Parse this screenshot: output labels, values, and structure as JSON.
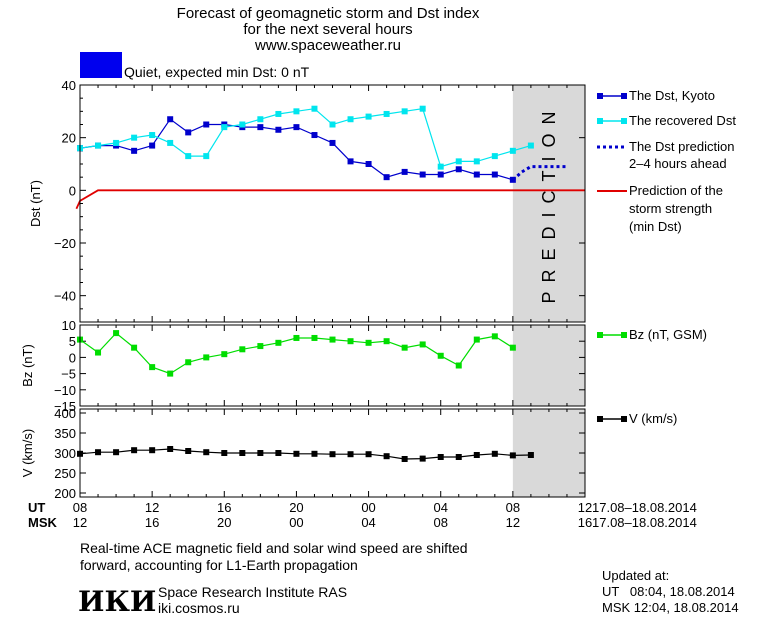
{
  "header": {
    "title_line1": "Forecast of geomagnetic storm and Dst index",
    "title_line2": "for the next several hours",
    "title_line3": "www.spaceweather.ru",
    "status_text": "Quiet, expected min Dst: 0 nT",
    "status_color": "#0000ee"
  },
  "colors": {
    "dst_kyoto": "#0000cc",
    "recovered_dst": "#00e5ee",
    "prediction_strength": "#e00000",
    "bz": "#00dd00",
    "v": "#000000",
    "prediction_band": "#d9d9d9"
  },
  "prediction_label": "PREDICTION",
  "legend": {
    "dst_kyoto": "The Dst, Kyoto",
    "recovered": "The recovered Dst",
    "dst_pred_1": "The Dst prediction",
    "dst_pred_2": "2–4 hours ahead",
    "strength_1": "Prediction of the",
    "strength_2": "storm strength",
    "strength_3": "(min Dst)",
    "bz": "Bz (nT, GSM)",
    "v": "V (km/s)"
  },
  "time_axis": {
    "ut_label": "UT",
    "msk_label": "MSK",
    "ut_ticks": [
      "08",
      "12",
      "16",
      "20",
      "00",
      "04",
      "08",
      "12"
    ],
    "msk_ticks": [
      "12",
      "16",
      "20",
      "00",
      "04",
      "08",
      "12",
      "16"
    ],
    "date_range_ut": "17.08–18.08.2014",
    "date_range_msk": "17.08–18.08.2014"
  },
  "footer": {
    "note_line1": "Real-time ACE magnetic field and solar wind speed are shifted",
    "note_line2": "forward, accounting for L1-Earth propagation",
    "logo_text": "ИКИ",
    "institute": "Space Research Institute RAS",
    "site": "iki.cosmos.ru",
    "updated_label": "Updated at:",
    "updated_ut": "UT   08:04, 18.08.2014",
    "updated_msk": "MSK 12:04, 18.08.2014"
  },
  "chart_data": [
    {
      "type": "line",
      "ylabel": "Dst (nT)",
      "xlim_hours_since_ut_08": [
        0,
        28
      ],
      "prediction_start_hours": 24,
      "ylim": [
        -50,
        40
      ],
      "yticks": [
        40,
        20,
        0,
        -20,
        -40
      ],
      "series": [
        {
          "name": "The Dst, Kyoto",
          "x": [
            0,
            1,
            2,
            3,
            4,
            5,
            6,
            7,
            8,
            9,
            10,
            11,
            12,
            13,
            14,
            15,
            16,
            17,
            18,
            19,
            20,
            21,
            22,
            23,
            24
          ],
          "y": [
            16,
            17,
            17,
            15,
            17,
            27,
            22,
            25,
            25,
            24,
            24,
            23,
            24,
            21,
            18,
            11,
            10,
            5,
            7,
            6,
            6,
            8,
            6,
            6,
            4
          ]
        },
        {
          "name": "The recovered Dst",
          "x": [
            0,
            1,
            2,
            3,
            4,
            5,
            6,
            7,
            8,
            9,
            10,
            11,
            12,
            13,
            14,
            15,
            16,
            17,
            18,
            19,
            20,
            21,
            22,
            23,
            24,
            25
          ],
          "y": [
            16,
            17,
            18,
            20,
            21,
            18,
            13,
            13,
            24,
            25,
            27,
            29,
            30,
            31,
            25,
            27,
            28,
            29,
            30,
            31,
            9,
            11,
            11,
            13,
            15,
            17
          ]
        },
        {
          "name": "The Dst prediction",
          "x": [
            24,
            24.5,
            25,
            25.5,
            26,
            26.5,
            27
          ],
          "y": [
            4,
            7,
            9,
            9,
            9,
            9,
            9
          ]
        },
        {
          "name": "Prediction of the storm strength (min Dst)",
          "x": [
            -0.2,
            0,
            1,
            28
          ],
          "y": [
            -7,
            -4,
            0,
            0
          ]
        }
      ]
    },
    {
      "type": "line",
      "ylabel": "Bz (nT)",
      "ylim": [
        -15,
        10
      ],
      "yticks": [
        10,
        5,
        0,
        -5,
        -10,
        -15
      ],
      "yticks_labels": [
        "10",
        "5",
        "0",
        "−5",
        "−10",
        "−15"
      ],
      "series": [
        {
          "name": "Bz (nT, GSM)",
          "x": [
            0,
            1,
            2,
            3,
            4,
            5,
            6,
            7,
            8,
            9,
            10,
            11,
            12,
            13,
            14,
            15,
            16,
            17,
            18,
            19,
            20,
            21,
            22,
            23,
            24,
            25
          ],
          "y": [
            5.5,
            1.5,
            7.5,
            3,
            -3,
            -5,
            -1.5,
            0,
            1,
            2.5,
            3.5,
            4.5,
            6,
            6,
            5.5,
            5,
            4.5,
            5,
            3,
            4,
            0.5,
            -2.5,
            5.5,
            6.5,
            3,
            null
          ]
        }
      ]
    },
    {
      "type": "line",
      "ylabel": "V (km/s)",
      "ylim": [
        190,
        410
      ],
      "yticks": [
        400,
        350,
        300,
        250,
        200
      ],
      "series": [
        {
          "name": "V (km/s)",
          "x": [
            0,
            1,
            2,
            3,
            4,
            5,
            6,
            7,
            8,
            9,
            10,
            11,
            12,
            13,
            14,
            15,
            16,
            17,
            18,
            19,
            20,
            21,
            22,
            23,
            24,
            25
          ],
          "y": [
            298,
            302,
            302,
            307,
            307,
            310,
            305,
            302,
            300,
            300,
            300,
            300,
            298,
            298,
            297,
            297,
            297,
            292,
            285,
            286,
            290,
            290,
            295,
            298,
            294,
            295
          ]
        }
      ]
    }
  ]
}
